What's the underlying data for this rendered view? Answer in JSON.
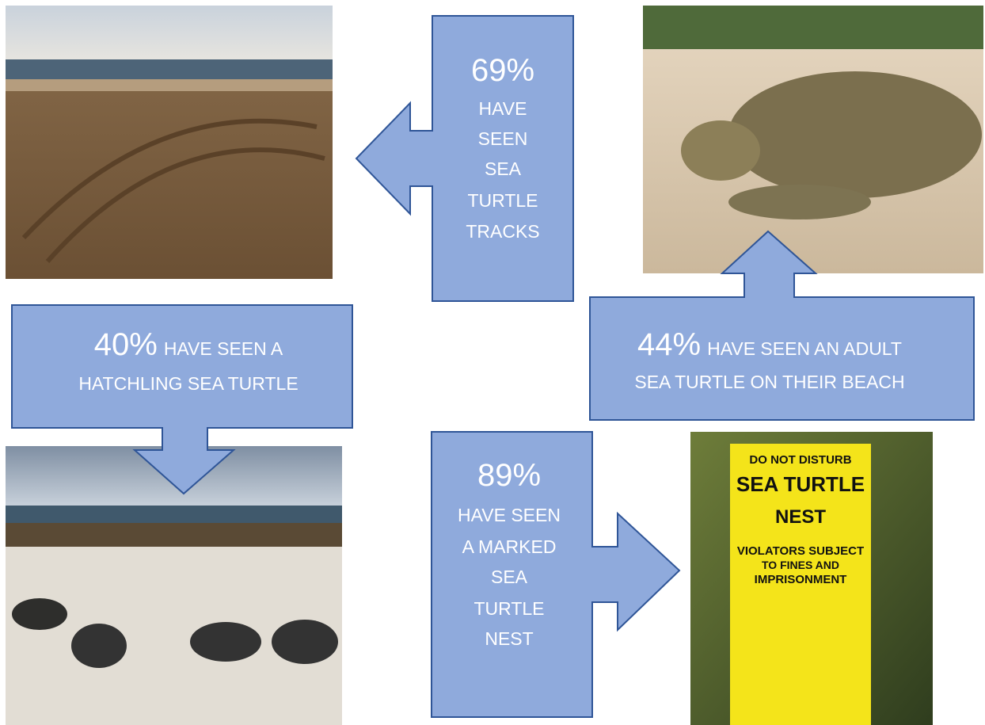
{
  "callouts": [
    {
      "percent": "69%",
      "lines": [
        "HAVE",
        "SEEN",
        "SEA",
        "TURTLE",
        "TRACKS"
      ]
    },
    {
      "percent": "44%",
      "lines": [
        "HAVE SEEN AN ADULT",
        "SEA TURTLE ON THEIR BEACH"
      ]
    },
    {
      "percent": "40%",
      "lines": [
        "HAVE SEEN A",
        "HATCHLING SEA TURTLE"
      ]
    },
    {
      "percent": "89%",
      "lines": [
        "HAVE SEEN",
        "A MARKED",
        "SEA",
        "TURTLE",
        "NEST"
      ]
    }
  ],
  "sign": {
    "lines": [
      "DO NOT DISTURB",
      "SEA TURTLE",
      "NEST",
      "VIOLATORS SUBJECT",
      "TO FINES AND",
      "IMPRISONMENT"
    ]
  }
}
